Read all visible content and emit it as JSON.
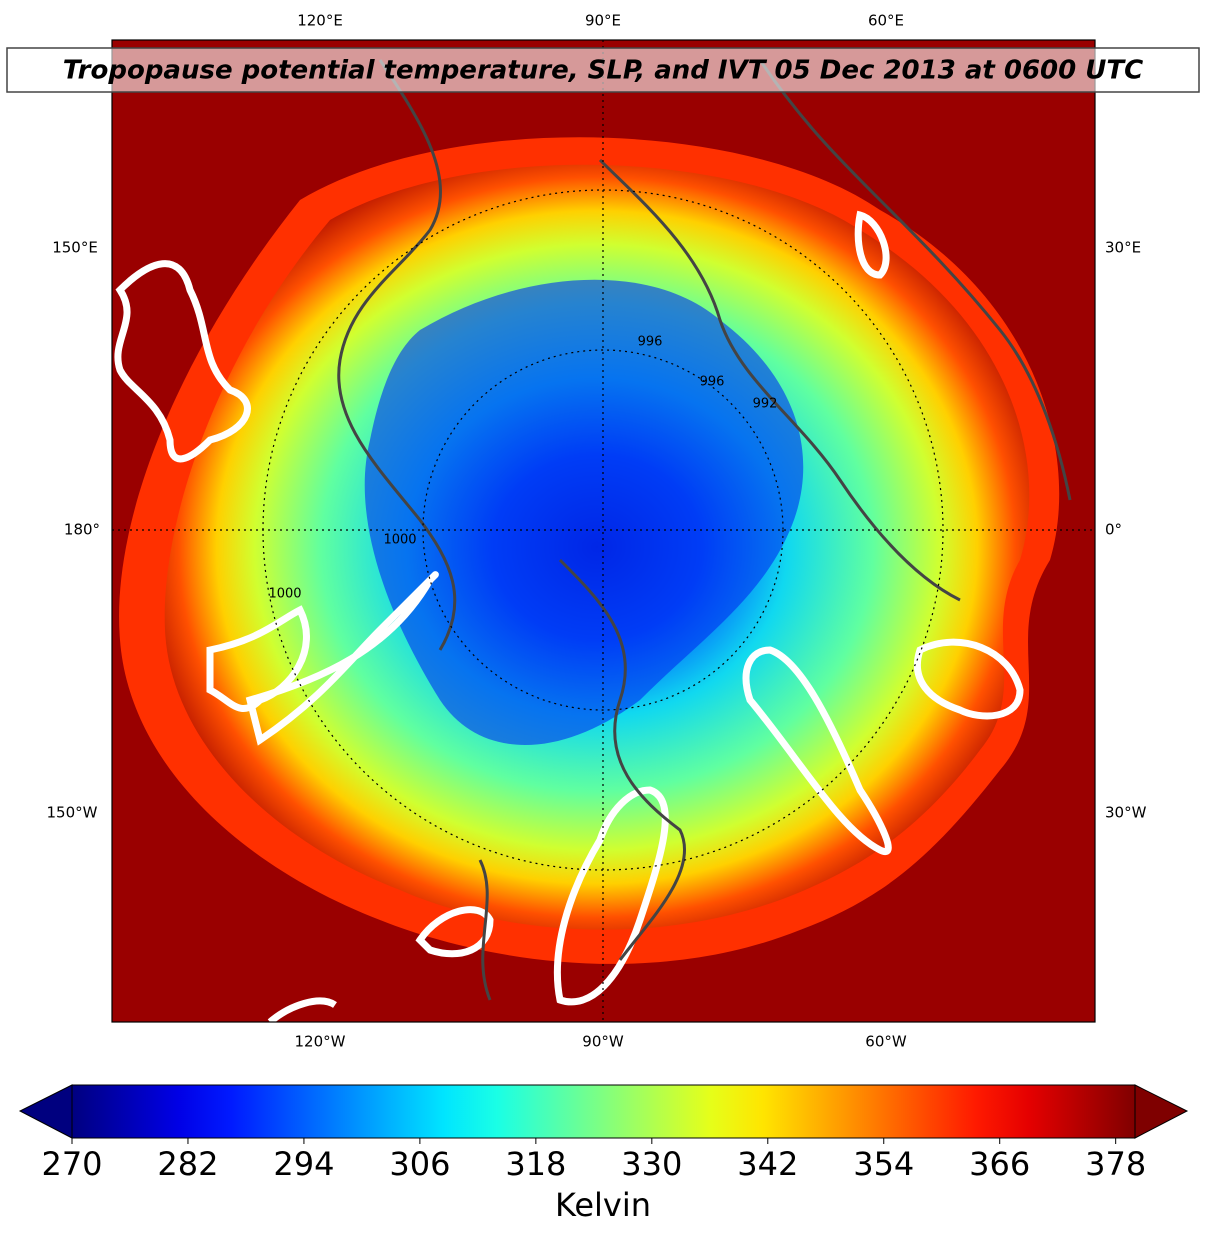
{
  "title": "Tropopause potential temperature, SLP, and IVT 05 Dec 2013 at 0600 UTC",
  "map": {
    "top_labels": [
      "120°E",
      "90°E",
      "60°E"
    ],
    "left_labels": [
      "150°E",
      "180°",
      "150°W"
    ],
    "right_labels": [
      "30°E",
      "0°",
      "30°W"
    ],
    "bottom_labels": [
      "120°W",
      "90°W",
      "60°W"
    ],
    "contour_labels": [
      "1000",
      "996",
      "992",
      "996",
      "1000"
    ]
  },
  "colorbar": {
    "label": "Kelvin",
    "colormap": "jet",
    "lim": [
      270,
      380
    ],
    "ticks": [
      270,
      282,
      294,
      306,
      318,
      330,
      342,
      354,
      366,
      378
    ]
  }
}
